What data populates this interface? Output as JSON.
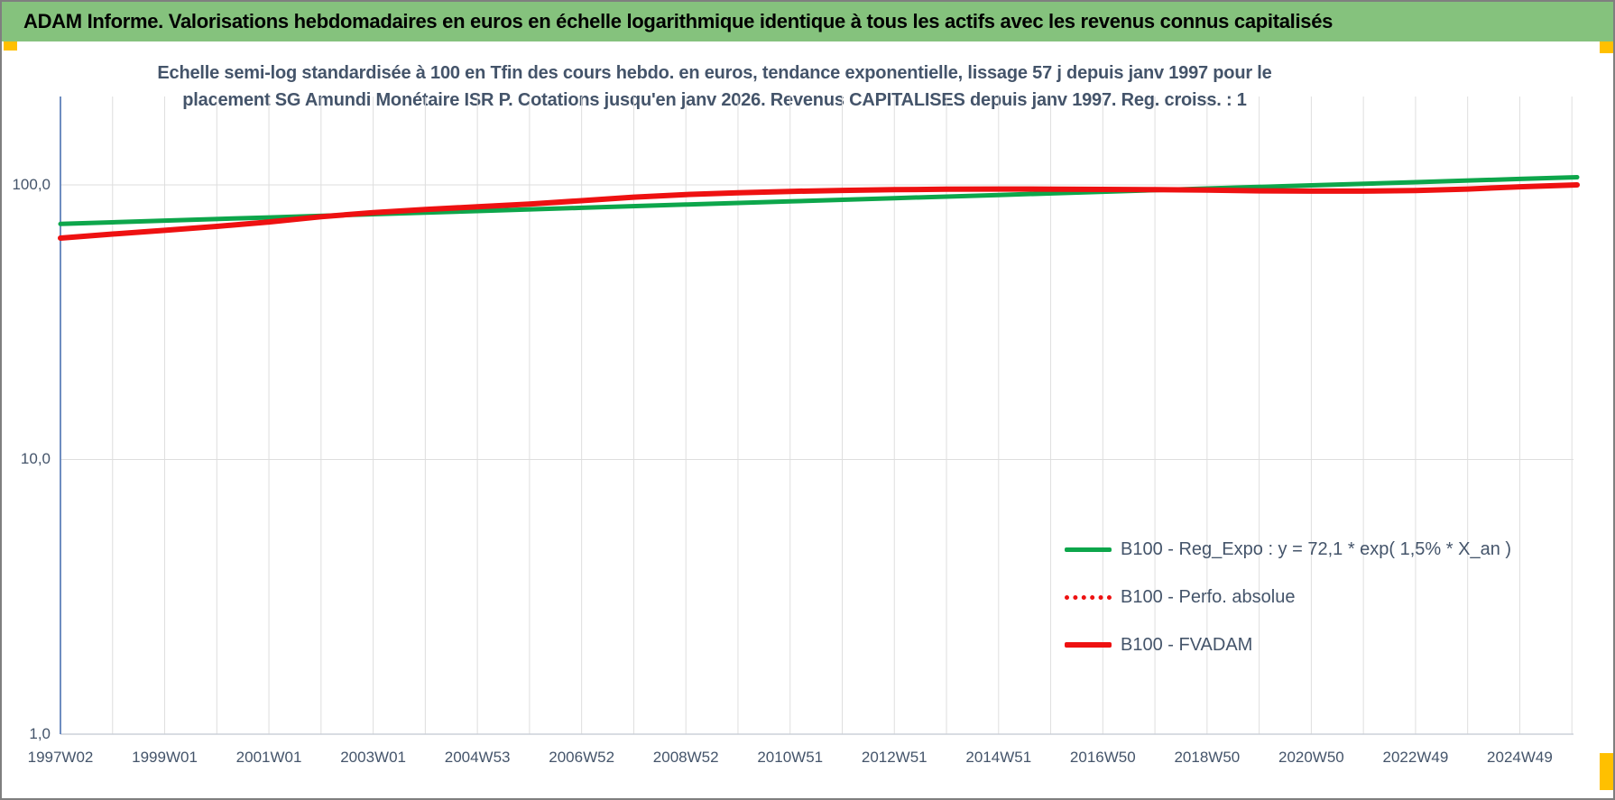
{
  "header": {
    "title": "ADAM Informe. Valorisations hebdomadaires en euros en échelle logarithmique identique à tous les actifs avec les revenus connus capitalisés",
    "bg_color": "#85C27D",
    "accent_color": "#FFC000"
  },
  "chart_data": {
    "type": "line",
    "title_line1": "Echelle semi-log standardisée à 100 en Tfin des cours hebdo. en euros, tendance exponentielle, lissage 57 j depuis janv 1997 pour le",
    "title_line2": "placement SG Amundi Monétaire ISR P. Cotations jusqu'en janv 2026. Revenus CAPITALISES depuis janv 1997. Reg. croiss. : 1",
    "y_axis": {
      "scale": "log",
      "ticks": [
        "100,0",
        "10,0",
        "1,0"
      ],
      "tick_values": [
        100,
        10,
        1
      ],
      "range": [
        1,
        160
      ]
    },
    "x_axis": {
      "ticks": [
        "1997W02",
        "1999W01",
        "2001W01",
        "2003W01",
        "2004W53",
        "2006W52",
        "2008W52",
        "2010W51",
        "2012W51",
        "2014W51",
        "2016W50",
        "2018W50",
        "2020W50",
        "2022W49",
        "2024W49"
      ],
      "tick_years": [
        1997,
        1999,
        2001,
        2003,
        2005,
        2007,
        2009,
        2011,
        2013,
        2015,
        2017,
        2019,
        2021,
        2023,
        2025
      ],
      "gridline_interval_years": 1,
      "range_years": [
        1997.0,
        2026.1
      ]
    },
    "grid": true,
    "legend_position": "inside-right-lower",
    "colors": {
      "green_series": "#0DA64B",
      "red_series": "#EE1111",
      "text": "#44546A",
      "gridline": "#DEDEDE",
      "axis_line": "#6E8DC0"
    },
    "series": [
      {
        "name": "B100 - Reg_Expo : y = 72,1 * exp( 1,5% *  X_an )",
        "style": "solid",
        "color": "#0DA64B",
        "width": 5,
        "points": [
          [
            1997,
            72.1
          ],
          [
            1999,
            74.1
          ],
          [
            2001,
            76.1
          ],
          [
            2003,
            78.2
          ],
          [
            2005,
            80.3
          ],
          [
            2007,
            82.5
          ],
          [
            2009,
            84.8
          ],
          [
            2011,
            87.1
          ],
          [
            2013,
            89.5
          ],
          [
            2015,
            91.9
          ],
          [
            2017,
            94.4
          ],
          [
            2019,
            97.0
          ],
          [
            2021,
            99.6
          ],
          [
            2023,
            102.3
          ],
          [
            2025,
            105.1
          ],
          [
            2026.1,
            106.6
          ]
        ]
      },
      {
        "name": "B100 - Perfo. absolue",
        "style": "dotted",
        "color": "#EE1111",
        "width": 5,
        "points": [
          [
            1997,
            64.0
          ],
          [
            1998,
            66.2
          ],
          [
            1999,
            68.3
          ],
          [
            2000,
            70.6
          ],
          [
            2001,
            73.3
          ],
          [
            2002,
            76.6
          ],
          [
            2003,
            79.3
          ],
          [
            2004,
            81.4
          ],
          [
            2005,
            83.2
          ],
          [
            2006,
            85.2
          ],
          [
            2007,
            87.6
          ],
          [
            2008,
            90.2
          ],
          [
            2009,
            92.2
          ],
          [
            2010,
            93.6
          ],
          [
            2011,
            94.7
          ],
          [
            2012,
            95.5
          ],
          [
            2013,
            96.1
          ],
          [
            2014,
            96.4
          ],
          [
            2015,
            96.6
          ],
          [
            2016,
            96.5
          ],
          [
            2017,
            96.3
          ],
          [
            2018,
            96.1
          ],
          [
            2019,
            95.7
          ],
          [
            2020,
            95.1
          ],
          [
            2021,
            94.9
          ],
          [
            2022,
            94.9
          ],
          [
            2023,
            95.4
          ],
          [
            2024,
            96.6
          ],
          [
            2025,
            98.4
          ],
          [
            2026.1,
            100.0
          ]
        ]
      },
      {
        "name": "B100 - FVADAM",
        "style": "solid",
        "color": "#EE1111",
        "width": 6,
        "points": [
          [
            1997,
            64.0
          ],
          [
            1998,
            66.2
          ],
          [
            1999,
            68.3
          ],
          [
            2000,
            70.6
          ],
          [
            2001,
            73.3
          ],
          [
            2002,
            76.6
          ],
          [
            2003,
            79.3
          ],
          [
            2004,
            81.4
          ],
          [
            2005,
            83.2
          ],
          [
            2006,
            85.2
          ],
          [
            2007,
            87.6
          ],
          [
            2008,
            90.2
          ],
          [
            2009,
            92.2
          ],
          [
            2010,
            93.6
          ],
          [
            2011,
            94.7
          ],
          [
            2012,
            95.5
          ],
          [
            2013,
            96.1
          ],
          [
            2014,
            96.4
          ],
          [
            2015,
            96.6
          ],
          [
            2016,
            96.5
          ],
          [
            2017,
            96.3
          ],
          [
            2018,
            96.1
          ],
          [
            2019,
            95.7
          ],
          [
            2020,
            95.1
          ],
          [
            2021,
            94.9
          ],
          [
            2022,
            94.9
          ],
          [
            2023,
            95.4
          ],
          [
            2024,
            96.6
          ],
          [
            2025,
            98.4
          ],
          [
            2026.1,
            100.0
          ]
        ]
      }
    ]
  }
}
